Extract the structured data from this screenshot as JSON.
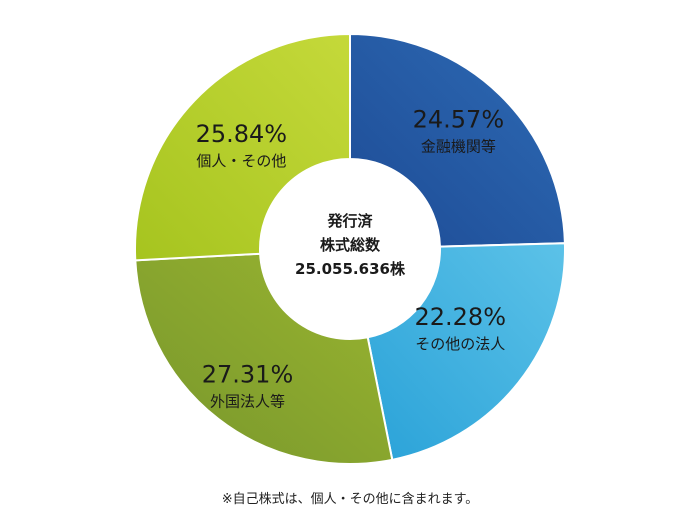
{
  "chart_data": {
    "type": "pie",
    "donut": true,
    "center_label": [
      "発行済",
      "株式総数",
      "25.055.636株"
    ],
    "slices": [
      {
        "label": "金融機関等",
        "value": 24.57,
        "value_text": "24.57%",
        "colors": [
          "#1d4b95",
          "#2e6bb5"
        ]
      },
      {
        "label": "その他の法人",
        "value": 22.28,
        "value_text": "22.28%",
        "colors": [
          "#2aa2d8",
          "#5cc2e8"
        ]
      },
      {
        "label": "外国法人等",
        "value": 27.31,
        "value_text": "27.31%",
        "colors": [
          "#77962c",
          "#9ab530"
        ]
      },
      {
        "label": "個人・その他",
        "value": 25.84,
        "value_text": "25.84%",
        "colors": [
          "#a6c41f",
          "#c5d93a"
        ]
      }
    ]
  },
  "footnote": "※自己株式は、個人・その他に含まれます。"
}
